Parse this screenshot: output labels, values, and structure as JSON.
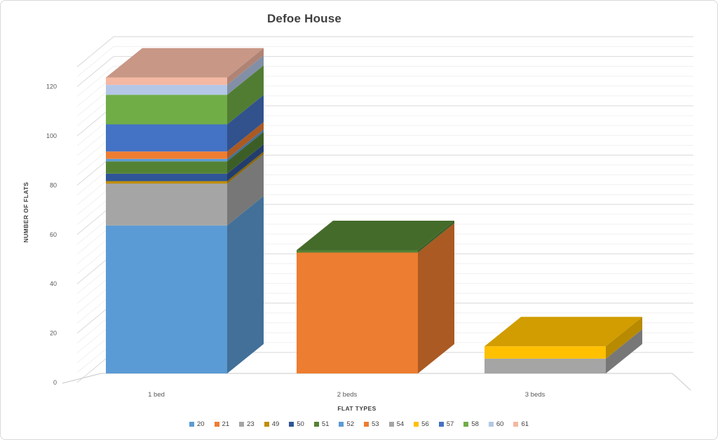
{
  "ui": {
    "background": "#FFFFFF",
    "border_color": "#D9D9D9",
    "title_color": "#3F3F3F",
    "label_color": "#404040",
    "tick_color": "#595959",
    "gridline_major": "#D9D9D9",
    "gridline_minor": "#F0F0F0",
    "floor_edge": "#C9C9C9"
  },
  "chart_data": {
    "type": "bar",
    "variant": "3d-stacked-column",
    "title": "Defoe House",
    "xlabel": "FLAT TYPES",
    "ylabel": "NUMBER OF FLATS",
    "categories": [
      "1 bed",
      "2 beds",
      "3 beds"
    ],
    "ylim": [
      0,
      120
    ],
    "y_major_unit": 20,
    "y_minor_unit": 4,
    "grid": true,
    "legend_position": "bottom",
    "totals": [
      120,
      50,
      11
    ],
    "series": [
      {
        "name": "20",
        "color": "#5B9BD5",
        "values": [
          60,
          0,
          0
        ]
      },
      {
        "name": "21",
        "color": "#ED7D31",
        "values": [
          0,
          49,
          0
        ]
      },
      {
        "name": "23",
        "color": "#A5A5A5",
        "values": [
          17,
          0,
          0
        ]
      },
      {
        "name": "49",
        "color": "#BF8F00",
        "values": [
          1,
          0,
          0
        ]
      },
      {
        "name": "50",
        "color": "#2F5597",
        "values": [
          3,
          0,
          0
        ]
      },
      {
        "name": "51",
        "color": "#548235",
        "values": [
          5,
          1,
          0
        ]
      },
      {
        "name": "52",
        "color": "#5B9BD5",
        "values": [
          1,
          0,
          0
        ]
      },
      {
        "name": "53",
        "color": "#ED7D31",
        "values": [
          3,
          0,
          0
        ]
      },
      {
        "name": "54",
        "color": "#A5A5A5",
        "values": [
          0,
          0,
          6
        ]
      },
      {
        "name": "56",
        "color": "#FFC000",
        "values": [
          0,
          0,
          5
        ]
      },
      {
        "name": "57",
        "color": "#4472C4",
        "values": [
          11,
          0,
          0
        ]
      },
      {
        "name": "58",
        "color": "#70AD47",
        "values": [
          12,
          0,
          0
        ]
      },
      {
        "name": "60",
        "color": "#B4C7E7",
        "values": [
          4,
          0,
          0
        ]
      },
      {
        "name": "61",
        "color": "#F4B8A3",
        "values": [
          3,
          0,
          0
        ]
      }
    ]
  }
}
